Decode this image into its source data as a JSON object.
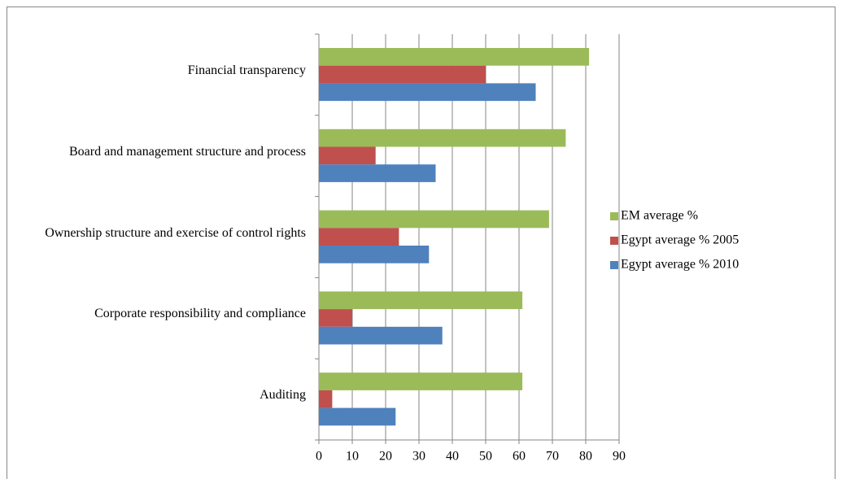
{
  "chart_data": {
    "type": "hbar",
    "categories": [
      "Financial transparency",
      "Board and management structure and process",
      "Ownership structure and exercise of control rights",
      "Corporate responsibility and compliance",
      "Auditing"
    ],
    "series": [
      {
        "name": "EM average %",
        "color": "#9bbb59",
        "values": [
          81,
          74,
          69,
          61,
          61
        ]
      },
      {
        "name": "Egypt average % 2005",
        "color": "#c0504d",
        "values": [
          50,
          17,
          24,
          10,
          4
        ]
      },
      {
        "name": "Egypt average % 2010",
        "color": "#4f81bd",
        "values": [
          65,
          35,
          33,
          37,
          23
        ]
      }
    ],
    "xlim": [
      0,
      90
    ],
    "xticks": [
      0,
      10,
      20,
      30,
      40,
      50,
      60,
      70,
      80,
      90
    ],
    "grid": true,
    "legend": "right"
  }
}
